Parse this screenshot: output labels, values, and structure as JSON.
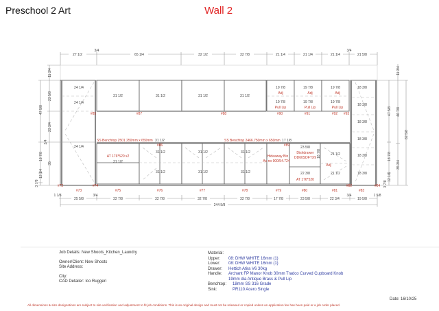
{
  "header": {
    "title": "Preschool 2 Art",
    "wall": "Wall 2",
    "wall_color": "#e02020"
  },
  "dims": {
    "top": [
      "27 1/2",
      "3/4",
      "65 1/4",
      "32 1/2",
      "32 7/8",
      "21 1/4",
      "21 1/4",
      "21 1/4",
      "3/4",
      "21 5/8"
    ],
    "bottom": [
      "1 1/8",
      "25 5/8",
      "3/4",
      "32 7/8",
      "32 7/8",
      "32 7/8",
      "32 7/8",
      "17 7/8",
      "23 5/8",
      "22 3/4",
      "3/4",
      "19 5/8",
      "1 5/8"
    ],
    "overall": "244 5/8",
    "left": [
      "11 3/4",
      "23 5/8",
      "23 3/4",
      "35",
      "47 5/8",
      "3/4",
      "18 7/8",
      "12 1/4",
      "3 7/8"
    ],
    "right": [
      "11 3/4",
      "47 5/8",
      "46 7/8",
      "82 5/8",
      "18 7/8",
      "35 3/4",
      "12 1/4",
      "3 7/8"
    ]
  },
  "tags": [
    "#72",
    "#73",
    "#74",
    "#75",
    "#76",
    "#77",
    "#78",
    "#79",
    "#80",
    "#81",
    "#82",
    "#83",
    "#84",
    "#85",
    "#86",
    "#87",
    "#88",
    "#89",
    "#90",
    "#91",
    "#92",
    "#93"
  ],
  "labels": {
    "tall_left": "24 1/4",
    "upper": "31 1/2",
    "drawer": "19 7/8",
    "adj": "Adj",
    "pull_lip": "Pull Lip",
    "tall_right": "18 3/8",
    "benchtop1": "SS Benchtop 2501.250mm x 650mm",
    "benchtop2": "SS Benchtop 2466.750mm x 650mm",
    "at_x2": "AT 176*520 x2",
    "lower": "31 1/2",
    "bench_overlap": "17 1/8",
    "bin1": "Hideaway Bin",
    "bin2": "Ac no 900/54.724",
    "dish1": "Dishdrawer",
    "dish2": "DD60SDFTX9",
    "dish_w": "23 5/8",
    "dish_h": "18 7/8",
    "drawer_lower": "22 3/8",
    "at": "AT 176*520",
    "right_lower": "21 1/2"
  },
  "footer": {
    "job": "Job Details: New Shoots_Kitchen_Laundry",
    "owner": "Owner/Client: New Shoots",
    "site": "Site Address:",
    "city": "City:",
    "cad": "CAD Detailer: Ico Ruggeri",
    "material_label": "Material:",
    "materials": [
      {
        "k": "Upper:",
        "v": "08: DHW WHITE 16mm (1)"
      },
      {
        "k": "Lower:",
        "v": "08: DHW WHITE 16mm (1)"
      },
      {
        "k": "Drawer:",
        "v": "Hettich Atira V6 30kg"
      },
      {
        "k": "Handle:",
        "v": "Archant FP Manor Knob 30mm Tradco Curved Cupboard Knob 19mm dia Antique Brass & Pull Lip"
      },
      {
        "k": "Benchtop:",
        "v": "18mm SS 316 Grade"
      },
      {
        "k": "Sink:",
        "v": "PR110 Acero Single"
      }
    ],
    "date": "Date: 16/10/25",
    "disclaimer": "All dimensions & size designations are subject to site verification and adjustment to fit job conditions. This is an original design and must not be released or copied unless an application fee has been paid or a job order placed."
  }
}
